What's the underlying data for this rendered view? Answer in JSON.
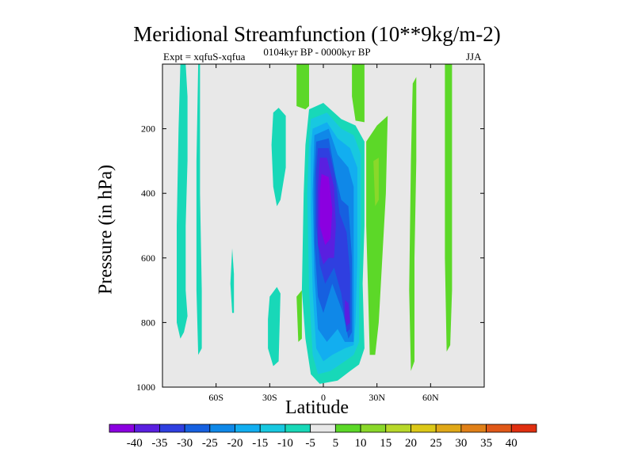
{
  "chart_data": {
    "type": "heatmap",
    "title": "Meridional Streamfunction (10**9kg/m-2)",
    "subtitle_left": "Expt = xqfuS-xqfua",
    "subtitle_center": "0104kyr BP - 0000kyr BP",
    "subtitle_right": "JJA",
    "xlabel": "Latitude",
    "ylabel": "Pressure (in hPa)",
    "xlim": [
      -90,
      90
    ],
    "ylim": [
      1000,
      0
    ],
    "x_ticks": [
      {
        "value": -60,
        "label": "60S"
      },
      {
        "value": -30,
        "label": "30S"
      },
      {
        "value": 0,
        "label": "0"
      },
      {
        "value": 30,
        "label": "30N"
      },
      {
        "value": 60,
        "label": "60N"
      }
    ],
    "y_ticks": [
      {
        "value": 200,
        "label": "200"
      },
      {
        "value": 400,
        "label": "400"
      },
      {
        "value": 600,
        "label": "600"
      },
      {
        "value": 800,
        "label": "800"
      },
      {
        "value": 1000,
        "label": "1000"
      }
    ],
    "levels": [
      -40,
      -35,
      -30,
      -25,
      -20,
      -15,
      -10,
      -5,
      5,
      10,
      15,
      20,
      25,
      30,
      35,
      40
    ],
    "colors": [
      "#8b00e0",
      "#5a1fe0",
      "#2f3fe0",
      "#1660e0",
      "#0f88e8",
      "#12aef0",
      "#18c8e0",
      "#18d8b8",
      "#e8e8e8",
      "#5cd828",
      "#8ad82a",
      "#b8d82a",
      "#dcc818",
      "#e0a818",
      "#e08018",
      "#e05818",
      "#e02f10"
    ],
    "background": "#e8e8e8",
    "regions": [
      {
        "name": "teal-strip-west",
        "level": -5,
        "points": [
          [
            -80,
            0
          ],
          [
            -77,
            0
          ],
          [
            -76,
            100
          ],
          [
            -76,
            300
          ],
          [
            -77,
            500
          ],
          [
            -77,
            700
          ],
          [
            -76,
            780
          ],
          [
            -78,
            830
          ],
          [
            -80,
            850
          ],
          [
            -82,
            800
          ],
          [
            -82,
            500
          ],
          [
            -81,
            200
          ]
        ]
      },
      {
        "name": "teal-strip-55S",
        "level": -5,
        "points": [
          [
            -70,
            0
          ],
          [
            -69,
            0
          ],
          [
            -69,
            400
          ],
          [
            -68,
            700
          ],
          [
            -68,
            880
          ],
          [
            -70,
            900
          ],
          [
            -71,
            700
          ],
          [
            -71,
            300
          ]
        ]
      },
      {
        "name": "teal-blob-60S",
        "level": -5,
        "points": [
          [
            -51,
            570
          ],
          [
            -50,
            650
          ],
          [
            -50,
            770
          ],
          [
            -51,
            770
          ],
          [
            -52,
            680
          ]
        ]
      },
      {
        "name": "teal-blob-30S-upper",
        "level": -5,
        "points": [
          [
            -28,
            150
          ],
          [
            -25,
            135
          ],
          [
            -21,
            160
          ],
          [
            -21,
            320
          ],
          [
            -24,
            420
          ],
          [
            -26,
            440
          ],
          [
            -28,
            380
          ],
          [
            -29,
            250
          ]
        ]
      },
      {
        "name": "teal-blob-30S-lower",
        "level": -5,
        "points": [
          [
            -30,
            720
          ],
          [
            -26,
            690
          ],
          [
            -24,
            710
          ],
          [
            -25,
            920
          ],
          [
            -28,
            935
          ],
          [
            -31,
            880
          ],
          [
            -31,
            790
          ]
        ]
      },
      {
        "name": "green-tiny-15S",
        "level": 5,
        "points": [
          [
            -15,
            720
          ],
          [
            -12,
            700
          ],
          [
            -12,
            850
          ],
          [
            -14,
            860
          ]
        ]
      },
      {
        "name": "green-top-10S",
        "level": 5,
        "points": [
          [
            -15,
            0
          ],
          [
            -8,
            0
          ],
          [
            -8,
            130
          ],
          [
            -10,
            140
          ],
          [
            -15,
            130
          ]
        ]
      },
      {
        "name": "green-top-20N",
        "level": 5,
        "points": [
          [
            16,
            0
          ],
          [
            23,
            0
          ],
          [
            23,
            180
          ],
          [
            18,
            175
          ],
          [
            16,
            100
          ]
        ]
      },
      {
        "name": "green-strip-25N",
        "level": 5,
        "points": [
          [
            24,
            240
          ],
          [
            30,
            190
          ],
          [
            36,
            160
          ],
          [
            35,
            400
          ],
          [
            33,
            600
          ],
          [
            31,
            800
          ],
          [
            29,
            900
          ],
          [
            26,
            900
          ],
          [
            25,
            700
          ],
          [
            24,
            500
          ]
        ]
      },
      {
        "name": "green-strip-50N",
        "level": 5,
        "points": [
          [
            50,
            60
          ],
          [
            52,
            40
          ],
          [
            52,
            300
          ],
          [
            51,
            600
          ],
          [
            51,
            920
          ],
          [
            49,
            950
          ],
          [
            48,
            700
          ],
          [
            49,
            300
          ]
        ]
      },
      {
        "name": "green-strip-70N",
        "level": 5,
        "points": [
          [
            68,
            0
          ],
          [
            72,
            0
          ],
          [
            72,
            300
          ],
          [
            72,
            700
          ],
          [
            71,
            870
          ],
          [
            69,
            890
          ],
          [
            68,
            600
          ]
        ]
      },
      {
        "name": "yellowgreen-25N",
        "level": 10,
        "points": [
          [
            28,
            300
          ],
          [
            31,
            290
          ],
          [
            31,
            420
          ],
          [
            29,
            440
          ]
        ]
      },
      {
        "name": "equator-l5",
        "level": -5,
        "points": [
          [
            -8,
            140
          ],
          [
            0,
            120
          ],
          [
            10,
            170
          ],
          [
            18,
            190
          ],
          [
            23,
            240
          ],
          [
            23,
            500
          ],
          [
            22,
            680
          ],
          [
            23,
            880
          ],
          [
            20,
            930
          ],
          [
            15,
            950
          ],
          [
            8,
            980
          ],
          [
            -2,
            990
          ],
          [
            -7,
            960
          ],
          [
            -10,
            850
          ],
          [
            -12,
            700
          ],
          [
            -11,
            400
          ],
          [
            -10,
            250
          ]
        ]
      },
      {
        "name": "equator-l10",
        "level": -10,
        "points": [
          [
            -7,
            170
          ],
          [
            2,
            150
          ],
          [
            10,
            200
          ],
          [
            17,
            220
          ],
          [
            21,
            280
          ],
          [
            21,
            500
          ],
          [
            20,
            700
          ],
          [
            20,
            860
          ],
          [
            17,
            900
          ],
          [
            12,
            920
          ],
          [
            4,
            950
          ],
          [
            -3,
            960
          ],
          [
            -6,
            900
          ],
          [
            -8,
            700
          ],
          [
            -9,
            400
          ],
          [
            -8,
            240
          ]
        ]
      },
      {
        "name": "equator-l15",
        "level": -15,
        "points": [
          [
            -6,
            200
          ],
          [
            2,
            180
          ],
          [
            8,
            230
          ],
          [
            15,
            260
          ],
          [
            19,
            320
          ],
          [
            19,
            600
          ],
          [
            18,
            800
          ],
          [
            17,
            870
          ],
          [
            12,
            880
          ],
          [
            5,
            900
          ],
          [
            0,
            920
          ],
          [
            -4,
            880
          ],
          [
            -6,
            700
          ],
          [
            -7,
            450
          ],
          [
            -7,
            260
          ]
        ]
      },
      {
        "name": "equator-l20",
        "level": -20,
        "points": [
          [
            -5,
            220
          ],
          [
            3,
            200
          ],
          [
            8,
            280
          ],
          [
            14,
            320
          ],
          [
            17,
            380
          ],
          [
            17,
            700
          ],
          [
            17,
            860
          ],
          [
            12,
            860
          ],
          [
            8,
            820
          ],
          [
            2,
            860
          ],
          [
            -3,
            820
          ],
          [
            -5,
            650
          ],
          [
            -6,
            400
          ]
        ]
      },
      {
        "name": "equator-l25",
        "level": -25,
        "points": [
          [
            -4,
            240
          ],
          [
            3,
            230
          ],
          [
            7,
            350
          ],
          [
            10,
            420
          ],
          [
            14,
            440
          ],
          [
            16,
            600
          ],
          [
            16,
            830
          ],
          [
            14,
            850
          ],
          [
            11,
            770
          ],
          [
            5,
            680
          ],
          [
            0,
            770
          ],
          [
            -3,
            720
          ],
          [
            -5,
            550
          ],
          [
            -5,
            350
          ]
        ]
      },
      {
        "name": "equator-l30",
        "level": -30,
        "points": [
          [
            -3,
            260
          ],
          [
            3,
            260
          ],
          [
            7,
            360
          ],
          [
            9,
            460
          ],
          [
            13,
            520
          ],
          [
            15,
            650
          ],
          [
            15,
            820
          ],
          [
            13,
            830
          ],
          [
            10,
            710
          ],
          [
            6,
            630
          ],
          [
            1,
            680
          ],
          [
            -2,
            620
          ],
          [
            -4,
            500
          ],
          [
            -4,
            330
          ]
        ]
      },
      {
        "name": "equator-l35",
        "level": -35,
        "points": [
          [
            -2,
            290
          ],
          [
            2,
            290
          ],
          [
            6,
            380
          ],
          [
            7,
            500
          ],
          [
            6,
            600
          ],
          [
            3,
            600
          ],
          [
            0,
            620
          ],
          [
            -3,
            560
          ],
          [
            -3,
            380
          ]
        ]
      },
      {
        "name": "equator-l40",
        "level": -40,
        "points": [
          [
            -1,
            340
          ],
          [
            3,
            350
          ],
          [
            5,
            450
          ],
          [
            4,
            540
          ],
          [
            1,
            560
          ],
          [
            -2,
            500
          ],
          [
            -2,
            400
          ]
        ]
      },
      {
        "name": "equator-l35-sub",
        "level": -35,
        "points": [
          [
            12,
            730
          ],
          [
            14,
            740
          ],
          [
            15,
            800
          ],
          [
            13,
            810
          ],
          [
            12,
            780
          ]
        ]
      }
    ]
  }
}
